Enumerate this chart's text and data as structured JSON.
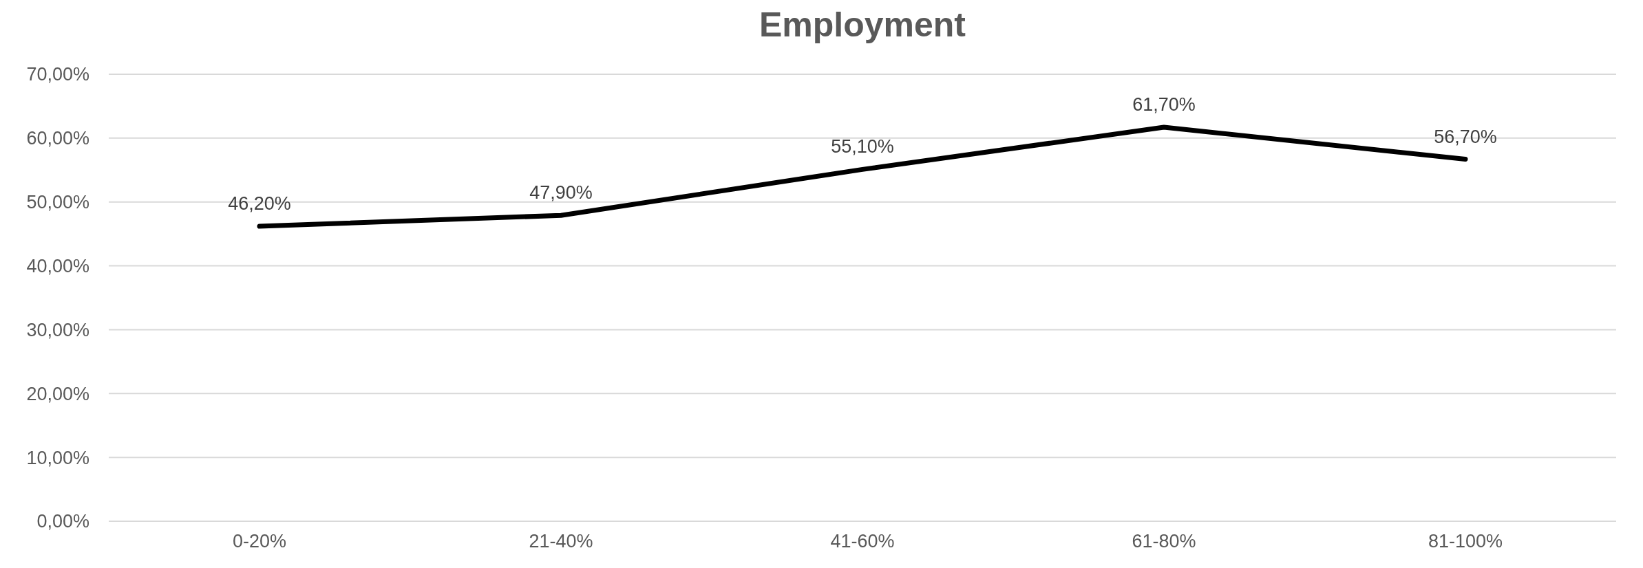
{
  "chart_data": {
    "type": "line",
    "title": "Employment",
    "categories": [
      "0-20%",
      "21-40%",
      "41-60%",
      "61-80%",
      "81-100%"
    ],
    "series": [
      {
        "color": "#000000",
        "values": [
          46.2,
          47.9,
          55.1,
          61.7,
          56.7
        ],
        "value_labels": [
          "46,20%",
          "47,90%",
          "55,10%",
          "61,70%",
          "56,70%"
        ]
      }
    ],
    "ylim": [
      0,
      70
    ],
    "yticks": [
      {
        "value": 0,
        "label": "0,00%"
      },
      {
        "value": 10,
        "label": "10,00%"
      },
      {
        "value": 20,
        "label": "20,00%"
      },
      {
        "value": 30,
        "label": "30,00%"
      },
      {
        "value": 40,
        "label": "40,00%"
      },
      {
        "value": 50,
        "label": "50,00%"
      },
      {
        "value": 60,
        "label": "60,00%"
      },
      {
        "value": 70,
        "label": "70,00%"
      }
    ],
    "grid": "y",
    "marker": "none",
    "line_style": "solid"
  }
}
